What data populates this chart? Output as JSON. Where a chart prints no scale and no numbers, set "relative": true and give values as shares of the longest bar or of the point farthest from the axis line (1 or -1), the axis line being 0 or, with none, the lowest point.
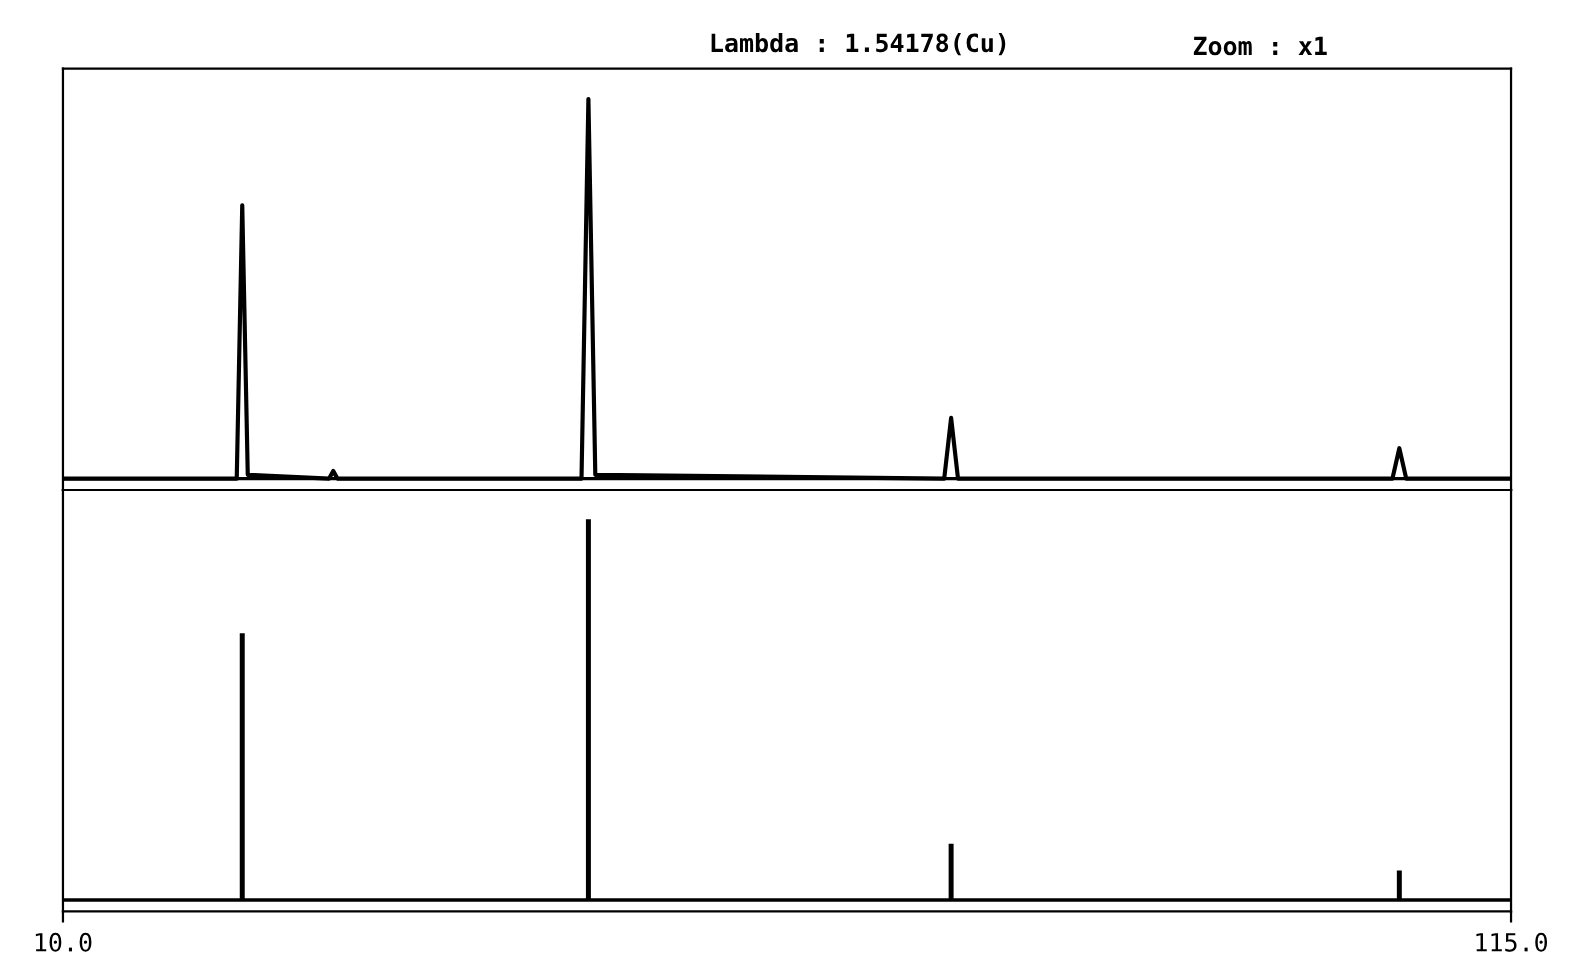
{
  "chart_data": [
    {
      "type": "line",
      "title": "Lambda : 1.54178(Cu)",
      "subtitle": "Zoom : x1",
      "relative": true,
      "tick_labels": false,
      "xlim": [
        10.0,
        115.0
      ],
      "color": "#000000",
      "x": [
        10,
        22.6,
        23.0,
        23.4,
        29.3,
        29.6,
        29.9,
        47.6,
        48.1,
        48.6,
        73.9,
        74.4,
        74.9,
        106.4,
        106.9,
        107.4,
        115
      ],
      "values": [
        0,
        0,
        0.72,
        0.01,
        0,
        0.02,
        0,
        0,
        1,
        0.01,
        0,
        0.16,
        0,
        0,
        0.08,
        0,
        0
      ]
    },
    {
      "type": "bar",
      "relative": true,
      "tick_labels": "x",
      "xlim": [
        10.0,
        115.0
      ],
      "xticks": [
        {
          "value": 10.0,
          "label": "10.0"
        },
        {
          "value": 115.0,
          "label": "115.0"
        }
      ],
      "color": "#000000",
      "x": [
        23.0,
        48.1,
        74.4,
        106.9
      ],
      "values": [
        0.7,
        1,
        0.145,
        0.075
      ]
    }
  ]
}
